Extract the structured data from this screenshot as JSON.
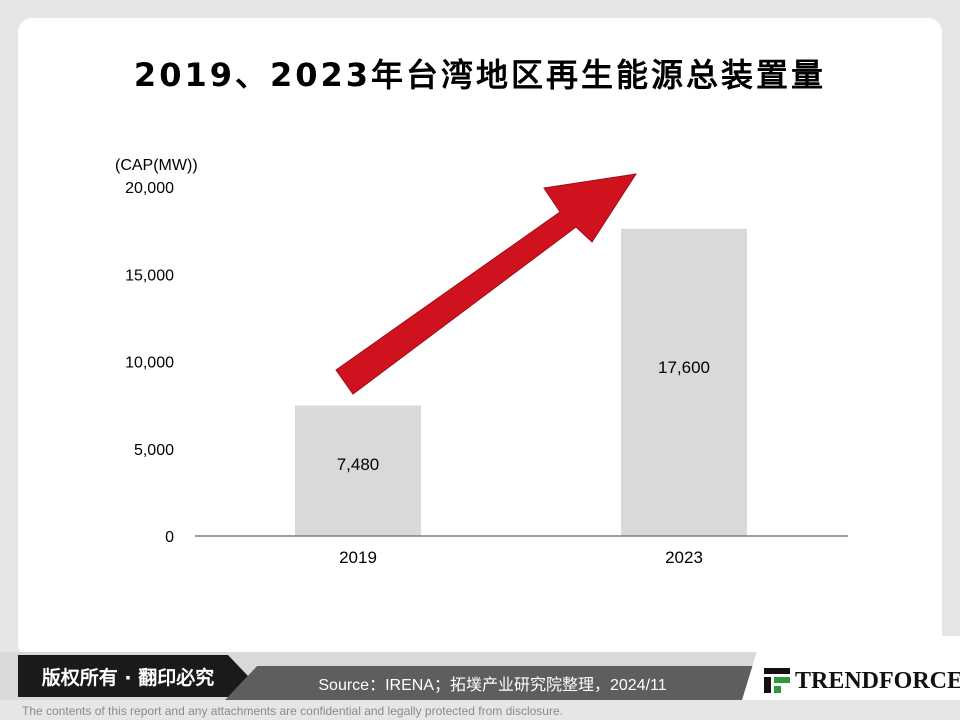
{
  "title": "2019、2023年台湾地区再生能源总装置量",
  "footer": {
    "copyright": "版权所有 · 翻印必究",
    "source": "Source：IRENA；拓墣产业研究院整理，2024/11",
    "brand": "TRENDFORCE",
    "disclaimer": "The contents of this report and any attachments are confidential and legally protected from disclosure."
  },
  "colors": {
    "bar": "#d9d9d9",
    "arrow": "#d0121e",
    "axis": "#7f7f7f"
  },
  "chart_data": {
    "type": "bar",
    "ylabel": "(CAP(MW))",
    "categories": [
      "2019",
      "2023"
    ],
    "values": [
      7480,
      17600
    ],
    "value_labels": [
      "7,480",
      "17,600"
    ],
    "ylim": [
      0,
      20000
    ],
    "yticks": [
      0,
      5000,
      10000,
      15000,
      20000
    ],
    "ytick_labels": [
      "0",
      "5,000",
      "10,000",
      "15,000",
      "20,000"
    ],
    "grid": false,
    "legend": "none",
    "annotation": "red upward arrow indicating growth"
  }
}
